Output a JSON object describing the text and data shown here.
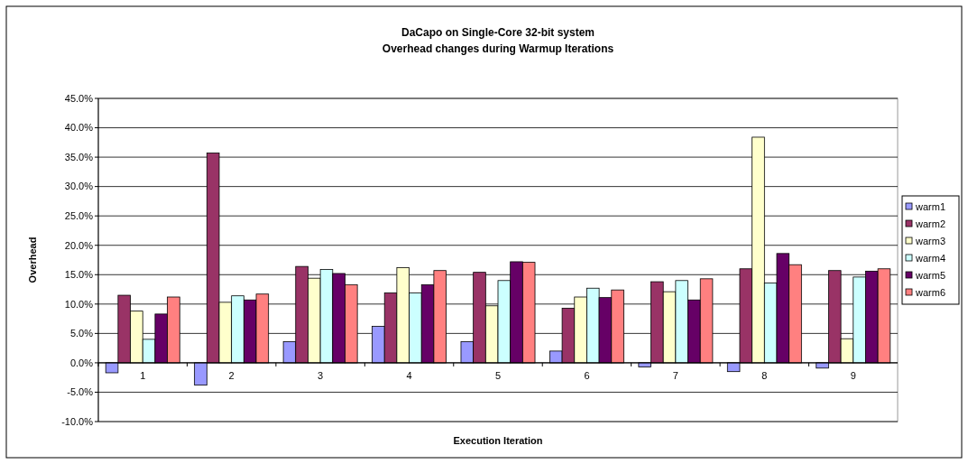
{
  "chart_data": {
    "type": "bar",
    "title": "DaCapo on Single-Core 32-bit system",
    "subtitle": "Overhead changes during Warmup Iterations",
    "xlabel": "Execution Iteration",
    "ylabel": "Overhead",
    "categories": [
      "1",
      "2",
      "3",
      "4",
      "5",
      "6",
      "7",
      "8",
      "9"
    ],
    "series": [
      {
        "name": "warm1",
        "color": "#9999ff",
        "values": [
          -1.7,
          -3.8,
          3.6,
          6.2,
          3.6,
          2.0,
          -0.7,
          -1.5,
          -0.9
        ]
      },
      {
        "name": "warm2",
        "color": "#993366",
        "values": [
          11.5,
          35.7,
          16.4,
          11.9,
          15.4,
          9.3,
          13.8,
          16.0,
          15.7
        ]
      },
      {
        "name": "warm3",
        "color": "#ffffcc",
        "values": [
          8.8,
          10.3,
          14.4,
          16.2,
          9.7,
          11.2,
          12.1,
          38.4,
          4.1
        ]
      },
      {
        "name": "warm4",
        "color": "#ccffff",
        "values": [
          4.0,
          11.4,
          15.9,
          11.9,
          14.0,
          12.7,
          14.0,
          13.6,
          14.6
        ]
      },
      {
        "name": "warm5",
        "color": "#660066",
        "values": [
          8.3,
          10.7,
          15.2,
          13.3,
          17.2,
          11.1,
          10.7,
          18.6,
          15.6
        ]
      },
      {
        "name": "warm6",
        "color": "#ff8080",
        "values": [
          11.2,
          11.7,
          13.3,
          15.7,
          17.1,
          12.4,
          14.3,
          16.7,
          16.0
        ]
      }
    ],
    "ylim": [
      -10,
      45
    ],
    "yticks": [
      {
        "value": -10,
        "label": "-10.0%"
      },
      {
        "value": -5,
        "label": "-5.0%"
      },
      {
        "value": 0,
        "label": "0.0%"
      },
      {
        "value": 5,
        "label": "5.0%"
      },
      {
        "value": 10,
        "label": "10.0%"
      },
      {
        "value": 15,
        "label": "15.0%"
      },
      {
        "value": 20,
        "label": "20.0%"
      },
      {
        "value": 25,
        "label": "25.0%"
      },
      {
        "value": 30,
        "label": "30.0%"
      },
      {
        "value": 35,
        "label": "35.0%"
      },
      {
        "value": 40,
        "label": "40.0%"
      },
      {
        "value": 45,
        "label": "45.0%"
      }
    ],
    "grid": "y",
    "legend": "right"
  }
}
